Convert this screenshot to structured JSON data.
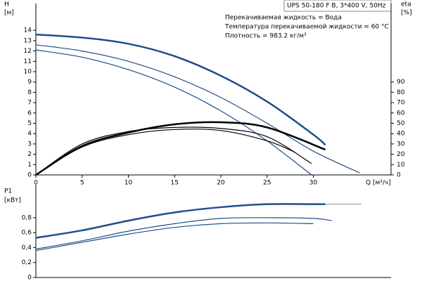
{
  "chart_data": [
    {
      "type": "line",
      "title": "UPS 50-180 F B, 3*400 V, 50Hz",
      "annotations": [
        "Перекачиваемая жидкость = Вода",
        "Температура перекачиваемой жидкости = 60 °C",
        "Плотность = 983.2 кг/м³"
      ],
      "ylabel": "H",
      "yunit": "[м]",
      "y2label": "eta",
      "y2unit": "[%]",
      "xlabel": "Q [м³/ч]",
      "xlim": [
        0,
        38.4
      ],
      "xticks": [
        0,
        5,
        10,
        15,
        20,
        25,
        30
      ],
      "ylim": [
        0,
        16.6
      ],
      "yticks": [
        0,
        1,
        2,
        3,
        4,
        5,
        6,
        7,
        8,
        9,
        10,
        11,
        12,
        13,
        14
      ],
      "y2lim": [
        0,
        166
      ],
      "y2ticks": [
        0,
        10,
        20,
        30,
        40,
        50,
        60,
        70,
        80,
        90
      ],
      "series": [
        {
          "color": "#1f4e8c",
          "linewidth": 2.5,
          "x": [
            0,
            5,
            10,
            15,
            20,
            25,
            30,
            31.3
          ],
          "values": [
            13.6,
            13.3,
            12.7,
            11.5,
            9.6,
            7.1,
            3.9,
            2.9
          ]
        },
        {
          "color": "#1f4e8c",
          "linewidth": 1.2,
          "x": [
            0,
            5,
            10,
            15,
            20,
            25,
            30,
            35
          ],
          "values": [
            12.6,
            12.0,
            11.0,
            9.5,
            7.5,
            5.0,
            2.3,
            0.2
          ]
        },
        {
          "color": "#1f4e8c",
          "linewidth": 1.2,
          "x": [
            0,
            5,
            10,
            15,
            20,
            25,
            29.8
          ],
          "values": [
            12.1,
            11.4,
            10.2,
            8.5,
            6.2,
            3.3,
            0
          ]
        },
        {
          "color": "#000000",
          "linewidth": 2.5,
          "axis": "y2",
          "x": [
            0,
            5,
            10,
            15,
            20,
            25,
            31.3
          ],
          "values": [
            0,
            28,
            41,
            49,
            51,
            46,
            24.5
          ]
        },
        {
          "color": "#000000",
          "linewidth": 1.2,
          "axis": "y2",
          "x": [
            0,
            5,
            10,
            15,
            20,
            25,
            29.8
          ],
          "values": [
            0,
            30,
            42,
            46,
            45,
            37,
            11
          ]
        },
        {
          "color": "#000000",
          "linewidth": 1.2,
          "axis": "y2",
          "x": [
            0,
            5,
            10,
            15,
            20,
            25,
            28
          ],
          "values": [
            0,
            27,
            39,
            44,
            43,
            33,
            22
          ]
        }
      ]
    },
    {
      "type": "line",
      "ylabel": "P1",
      "yunit": "[кВт]",
      "xlim": [
        0,
        38.4
      ],
      "ylim": [
        0,
        1.24
      ],
      "yticks": [
        0,
        {
          "value": 0.2,
          "label": "0,2"
        },
        {
          "value": 0.4,
          "label": "0,4"
        },
        {
          "value": 0.6,
          "label": "0,6"
        },
        {
          "value": 0.8,
          "label": "0,8"
        }
      ],
      "series": [
        {
          "color": "#1f4e8c",
          "linewidth": 2.5,
          "x": [
            0,
            5,
            10,
            15,
            20,
            25,
            30,
            31.3
          ],
          "values": [
            0.53,
            0.63,
            0.76,
            0.87,
            0.94,
            0.98,
            0.98,
            0.98
          ]
        },
        {
          "color": "#999999",
          "linewidth": 1.2,
          "x": [
            31.3,
            35.2
          ],
          "values": [
            0.98,
            0.98
          ]
        },
        {
          "color": "#1f4e8c",
          "linewidth": 1.2,
          "x": [
            0,
            5,
            10,
            15,
            20,
            25,
            30,
            32
          ],
          "values": [
            0.38,
            0.49,
            0.62,
            0.72,
            0.79,
            0.8,
            0.79,
            0.76
          ]
        },
        {
          "color": "#1f4e8c",
          "linewidth": 1.2,
          "x": [
            0,
            5,
            10,
            15,
            20,
            25,
            30
          ],
          "values": [
            0.36,
            0.47,
            0.58,
            0.67,
            0.72,
            0.73,
            0.72
          ]
        }
      ]
    }
  ]
}
